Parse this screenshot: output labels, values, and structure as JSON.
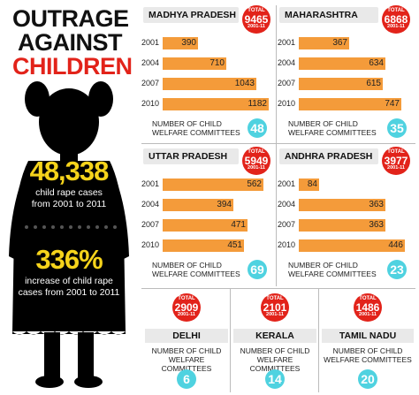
{
  "title": {
    "line1": "OUTRAGE",
    "line2": "AGAINST",
    "line3": "CHILDREN"
  },
  "stats": {
    "rape_total": "48,338",
    "rape_total_desc_1": "child rape cases",
    "rape_total_desc_2": "from 2001 to 2011",
    "increase": "336%",
    "increase_desc_1": "increase of child rape",
    "increase_desc_2": "cases from 2001 to 2011"
  },
  "colors": {
    "bar": "#f49b3a",
    "badge": "#e2231a",
    "committee": "#4fd2e0",
    "highlight": "#f5d31b"
  },
  "committee_label_1": "NUMBER OF CHILD",
  "committee_label_2": "WELFARE COMMITTEES",
  "badge_total": "TOTAL",
  "badge_period": "2001-11",
  "chart_data": [
    {
      "type": "bar",
      "region": "MADHYA PRADESH",
      "total": "9465",
      "categories": [
        "2001",
        "2004",
        "2007",
        "2010"
      ],
      "values": [
        390,
        710,
        1043,
        1182
      ],
      "committees": "48",
      "xlim": [
        0,
        1200
      ]
    },
    {
      "type": "bar",
      "region": "MAHARASHTRA",
      "total": "6868",
      "categories": [
        "2001",
        "2004",
        "2007",
        "2010"
      ],
      "values": [
        367,
        634,
        615,
        747
      ],
      "committees": "35",
      "xlim": [
        0,
        800
      ]
    },
    {
      "type": "bar",
      "region": "UTTAR PRADESH",
      "total": "5949",
      "categories": [
        "2001",
        "2004",
        "2007",
        "2010"
      ],
      "values": [
        562,
        394,
        471,
        451
      ],
      "committees": "69",
      "xlim": [
        0,
        600
      ]
    },
    {
      "type": "bar",
      "region": "ANDHRA PRADESH",
      "total": "3977",
      "categories": [
        "2001",
        "2004",
        "2007",
        "2010"
      ],
      "values": [
        84,
        363,
        363,
        446
      ],
      "committees": "23",
      "xlim": [
        0,
        460
      ]
    }
  ],
  "small_regions": [
    {
      "name": "DELHI",
      "total": "2909",
      "committees": "6"
    },
    {
      "name": "KERALA",
      "total": "2101",
      "committees": "14"
    },
    {
      "name": "TAMIL NADU",
      "total": "1486",
      "committees": "20"
    }
  ]
}
